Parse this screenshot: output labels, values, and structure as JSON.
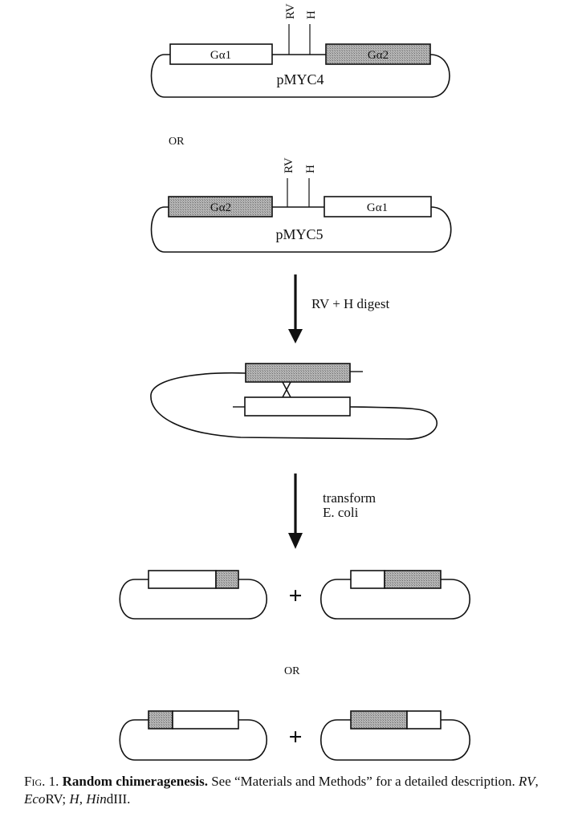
{
  "plasmid_top": {
    "name": "pMYC4",
    "left_insert": "Gα1",
    "right_insert": "Gα2",
    "site_rv": "RV",
    "site_h": "H"
  },
  "or_1": "OR",
  "plasmid_second": {
    "name": "pMYC5",
    "left_insert": "Gα2",
    "right_insert": "Gα1",
    "site_rv": "RV",
    "site_h": "H"
  },
  "step_digest": "RV + H digest",
  "step_transform_line1": "transform",
  "step_transform_line2": "E. coli",
  "plus_symbol": "+",
  "or_2": "OR",
  "caption": {
    "fig_label": "Fig. 1.",
    "title": "Random chimeragenesis.",
    "text_a": "See “Materials and Methods” for a detailed description.",
    "abbr_rv": "RV",
    "sep_1": ",",
    "enz_rv_prefix": "Eco",
    "enz_rv_suffix": "RV;",
    "abbr_h": "H",
    "sep_2": ",",
    "enz_h_prefix": "Hin",
    "enz_h_suffix": "dIII."
  },
  "colors": {
    "ink": "#111111",
    "shaded_insert": "#a9a9a9",
    "open_insert": "#ffffff"
  }
}
